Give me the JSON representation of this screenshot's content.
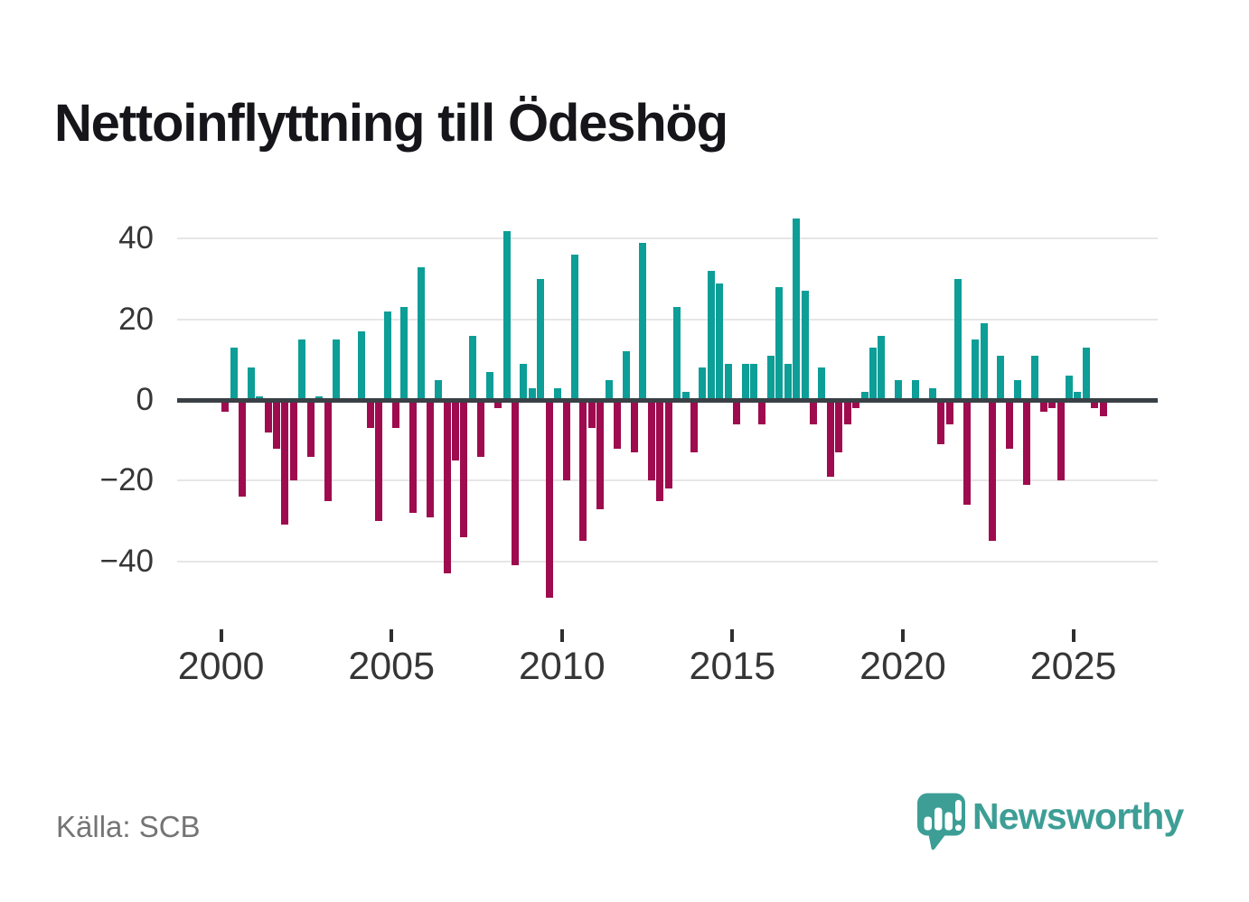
{
  "page": {
    "title": "Nettoinflyttning till Ödeshög",
    "source_note": "Källa: SCB"
  },
  "brand": {
    "wordmark": "Newsworthy",
    "logo_icon": "speech-bubble-bar-chart-icon",
    "brand_color": "#3D9E96"
  },
  "chart_data": {
    "type": "bar",
    "title": "Nettoinflyttning till Ödeshög",
    "period": "quarterly",
    "start_year": 2000,
    "x_tick_years": [
      2000,
      2005,
      2010,
      2015,
      2020,
      2025
    ],
    "x_tick_labels": [
      "2000",
      "2005",
      "2010",
      "2015",
      "2020",
      "2025"
    ],
    "y_tick_values": [
      40,
      20,
      0,
      -20,
      -40
    ],
    "y_tick_labels": [
      "40",
      "20",
      "0",
      "−20",
      "−40"
    ],
    "ylim": [
      -52,
      47
    ],
    "grid": true,
    "legend": "none",
    "positive_color": "#0C9E97",
    "negative_color": "#9E0B4E",
    "values": [
      -3,
      13,
      -24,
      8,
      1,
      -8,
      -12,
      -31,
      -20,
      15,
      -14,
      1,
      -25,
      15,
      0,
      0,
      17,
      -7,
      -30,
      22,
      -7,
      23,
      -28,
      33,
      -29,
      5,
      -43,
      -15,
      -34,
      16,
      -14,
      7,
      -2,
      42,
      -41,
      9,
      3,
      30,
      -49,
      3,
      -20,
      36,
      -35,
      -7,
      -27,
      5,
      -12,
      12,
      -13,
      39,
      -20,
      -25,
      -22,
      23,
      2,
      -13,
      8,
      32,
      29,
      9,
      -6,
      9,
      9,
      -6,
      11,
      28,
      9,
      45,
      27,
      -6,
      8,
      -19,
      -13,
      -6,
      -2,
      2,
      13,
      16,
      0,
      5,
      0,
      5,
      0,
      3,
      -11,
      -6,
      30,
      -26,
      15,
      19,
      -35,
      11,
      -12,
      5,
      -21,
      11,
      -3,
      -2,
      -20,
      6,
      2,
      13,
      -2,
      -4
    ]
  }
}
